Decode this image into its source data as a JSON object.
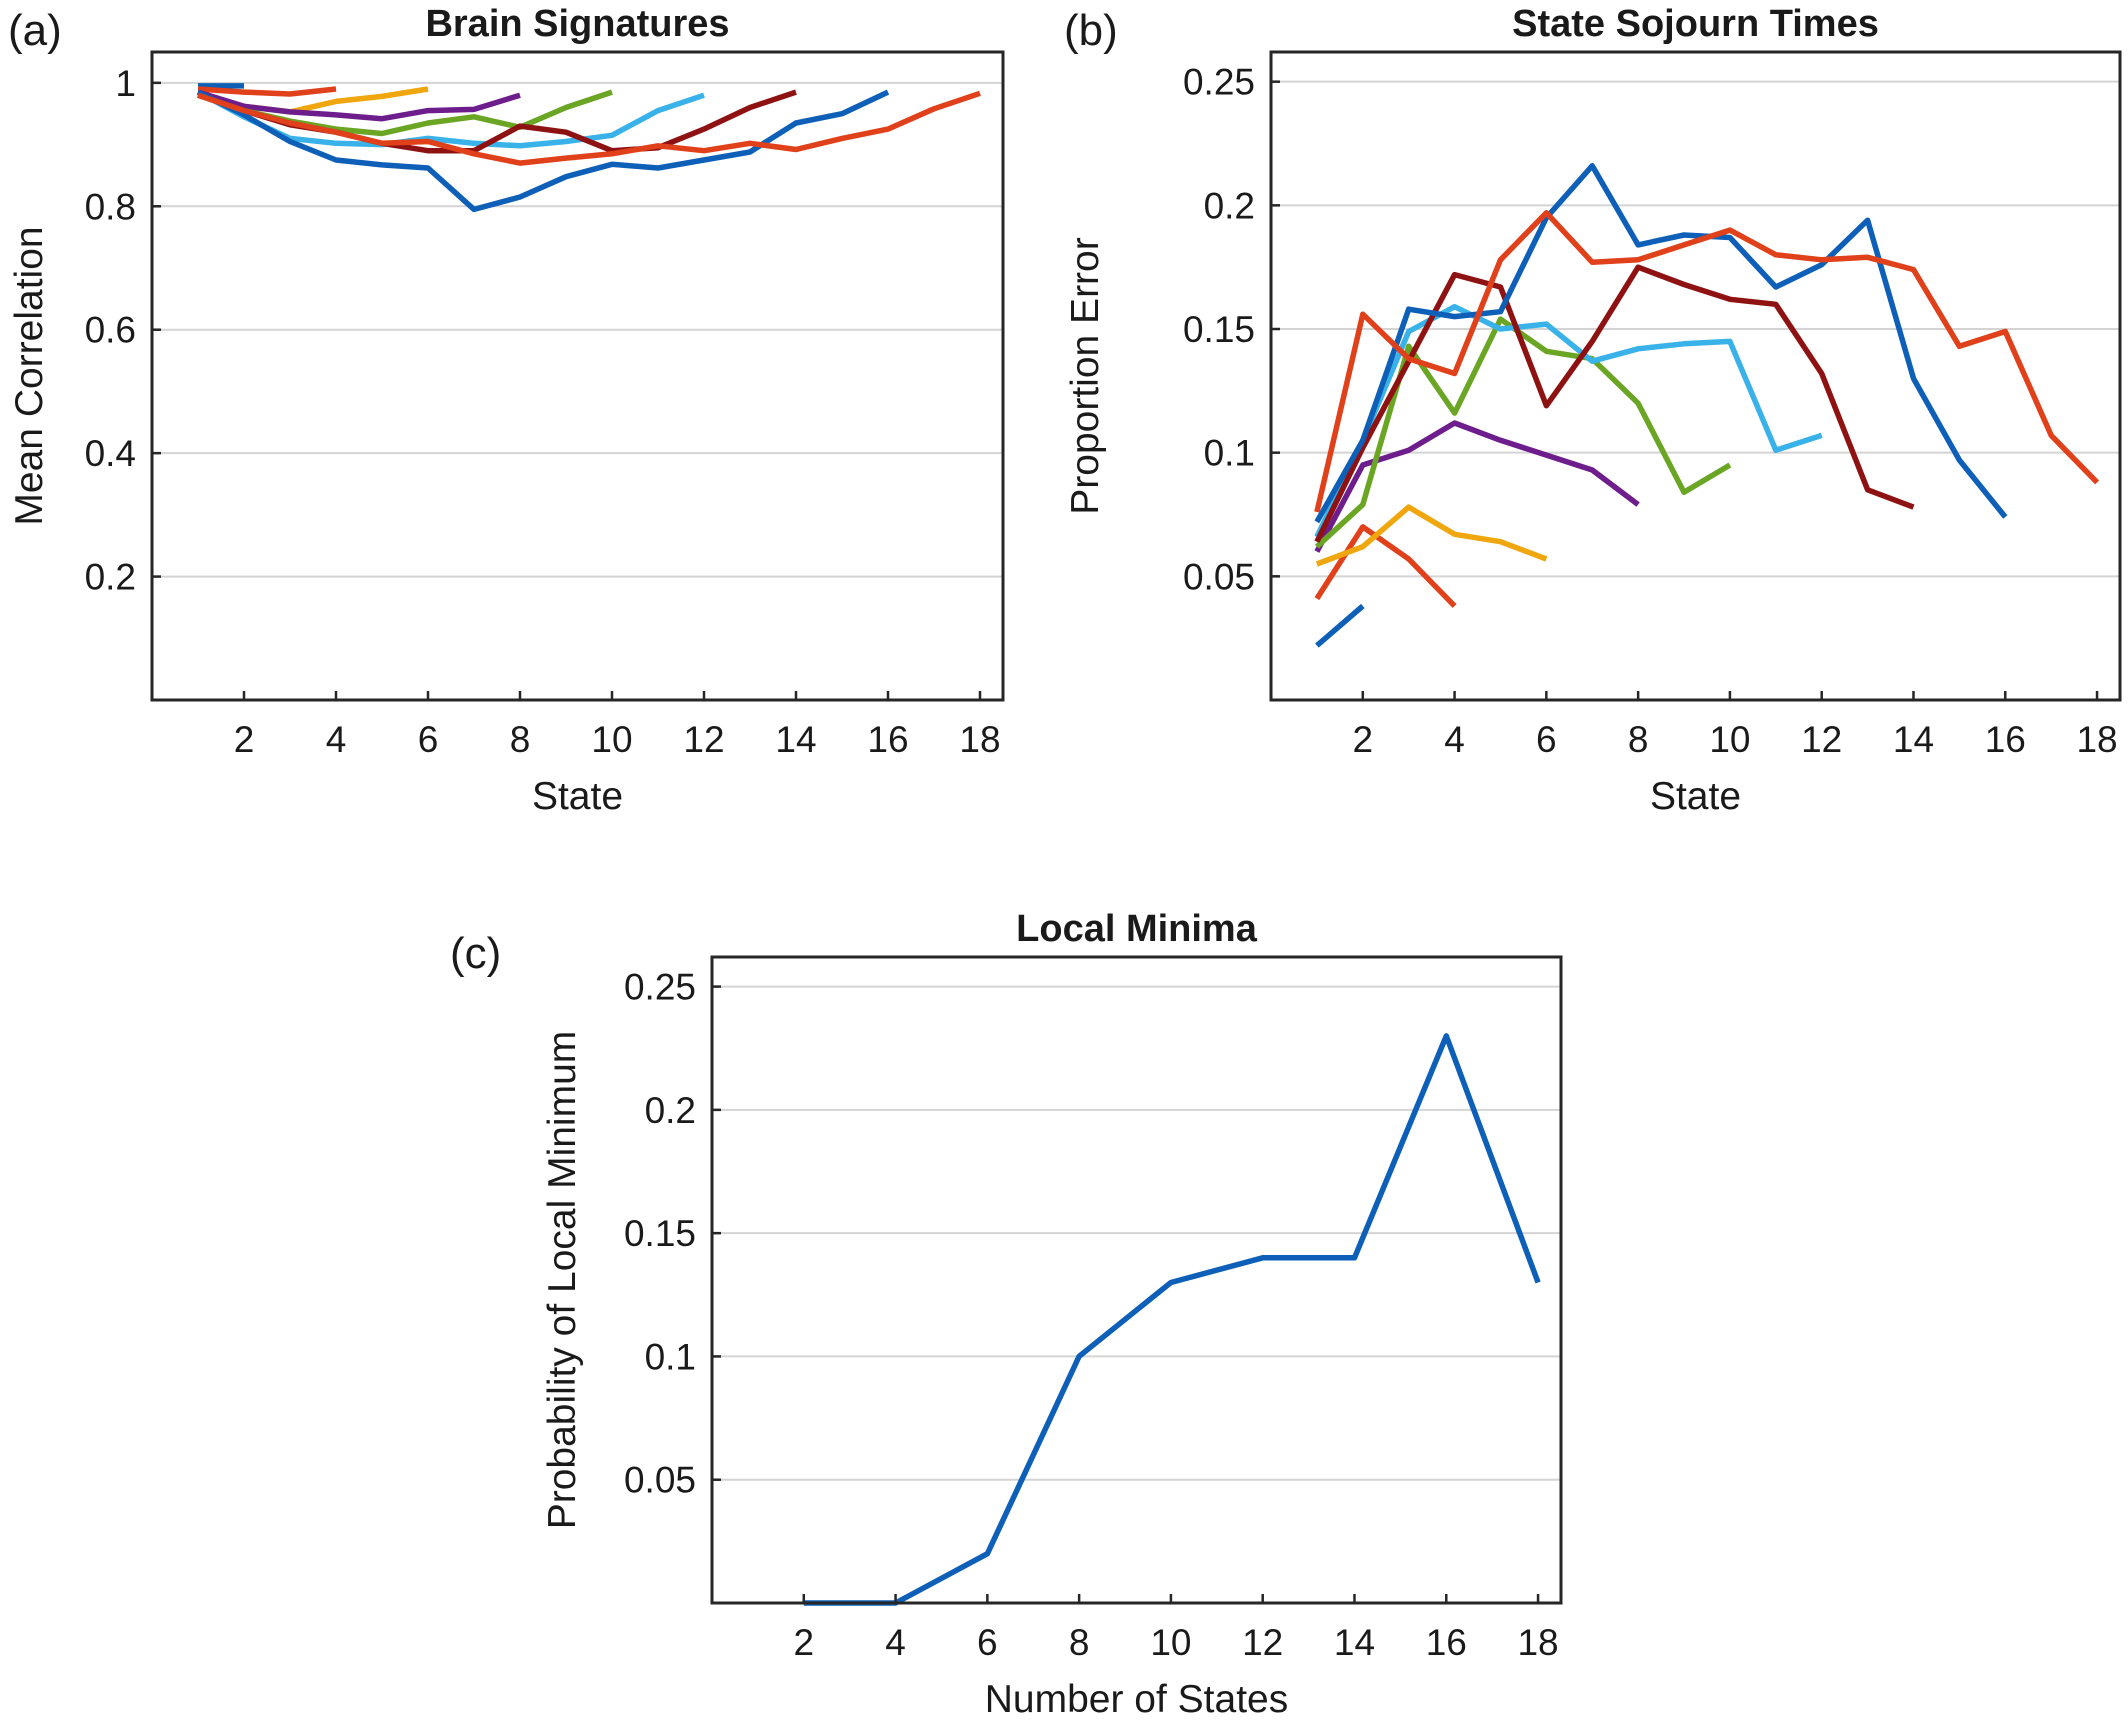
{
  "chart_data": [
    {
      "type": "line",
      "panel_label": "(a)",
      "title": "Brain Signatures",
      "xlabel": "State",
      "ylabel": "Mean Correlation",
      "xlim": [
        0,
        18.5
      ],
      "ylim": [
        0,
        1.05
      ],
      "xticks": [
        "2",
        "4",
        "6",
        "8",
        "10",
        "12",
        "14",
        "16",
        "18"
      ],
      "xtick_values": [
        2,
        4,
        6,
        8,
        10,
        12,
        14,
        16,
        18
      ],
      "yticks": [
        "0.2",
        "0.4",
        "0.6",
        "0.8",
        "1"
      ],
      "ytick_values": [
        0.2,
        0.4,
        0.6,
        0.8,
        1.0
      ],
      "grid": "horizontal",
      "series": [
        {
          "color": "#0d5fb8",
          "x": [
            1,
            2
          ],
          "y": [
            0.995,
            0.995
          ]
        },
        {
          "color": "#e0401a",
          "x": [
            1,
            2,
            3,
            4
          ],
          "y": [
            0.99,
            0.985,
            0.982,
            0.99
          ]
        },
        {
          "color": "#f0a70e",
          "x": [
            1,
            2,
            3,
            4,
            5,
            6
          ],
          "y": [
            0.98,
            0.962,
            0.953,
            0.97,
            0.978,
            0.99
          ]
        },
        {
          "color": "#6e1d8c",
          "x": [
            1,
            2,
            3,
            4,
            5,
            6,
            7,
            8
          ],
          "y": [
            0.985,
            0.962,
            0.953,
            0.948,
            0.942,
            0.955,
            0.957,
            0.98
          ]
        },
        {
          "color": "#6aa524",
          "x": [
            1,
            2,
            3,
            4,
            5,
            6,
            7,
            8,
            9,
            10
          ],
          "y": [
            0.98,
            0.955,
            0.938,
            0.925,
            0.918,
            0.935,
            0.945,
            0.928,
            0.96,
            0.985
          ]
        },
        {
          "color": "#38b2e8",
          "x": [
            1,
            2,
            3,
            4,
            5,
            6,
            7,
            8,
            9,
            10,
            11,
            12
          ],
          "y": [
            0.985,
            0.945,
            0.91,
            0.902,
            0.9,
            0.91,
            0.902,
            0.898,
            0.905,
            0.915,
            0.955,
            0.98
          ]
        },
        {
          "color": "#8f1212",
          "x": [
            1,
            2,
            3,
            4,
            5,
            6,
            7,
            8,
            9,
            10,
            11,
            12,
            13,
            14
          ],
          "y": [
            0.98,
            0.955,
            0.932,
            0.92,
            0.902,
            0.89,
            0.89,
            0.93,
            0.92,
            0.89,
            0.895,
            0.925,
            0.96,
            0.985
          ]
        },
        {
          "color": "#0d5fb8",
          "x": [
            1,
            2,
            3,
            4,
            5,
            6,
            7,
            8,
            9,
            10,
            11,
            12,
            13,
            14,
            15,
            16
          ],
          "y": [
            0.985,
            0.948,
            0.905,
            0.875,
            0.867,
            0.862,
            0.795,
            0.815,
            0.848,
            0.868,
            0.862,
            0.875,
            0.888,
            0.935,
            0.95,
            0.985
          ]
        },
        {
          "color": "#e0401a",
          "x": [
            1,
            2,
            3,
            4,
            5,
            6,
            7,
            8,
            9,
            10,
            11,
            12,
            13,
            14,
            15,
            16,
            17,
            18
          ],
          "y": [
            0.98,
            0.955,
            0.935,
            0.92,
            0.902,
            0.905,
            0.885,
            0.87,
            0.878,
            0.885,
            0.898,
            0.89,
            0.902,
            0.892,
            0.91,
            0.925,
            0.958,
            0.983
          ]
        }
      ]
    },
    {
      "type": "line",
      "panel_label": "(b)",
      "title": "State Sojourn Times",
      "xlabel": "State",
      "ylabel": "Proportion Error",
      "xlim": [
        0,
        18.5
      ],
      "ylim": [
        0,
        0.262
      ],
      "xticks": [
        "2",
        "4",
        "6",
        "8",
        "10",
        "12",
        "14",
        "16",
        "18"
      ],
      "xtick_values": [
        2,
        4,
        6,
        8,
        10,
        12,
        14,
        16,
        18
      ],
      "yticks": [
        "0.05",
        "0.1",
        "0.15",
        "0.2",
        "0.25"
      ],
      "ytick_values": [
        0.05,
        0.1,
        0.15,
        0.2,
        0.25
      ],
      "grid": "horizontal",
      "series": [
        {
          "color": "#0d5fb8",
          "x": [
            1,
            2
          ],
          "y": [
            0.022,
            0.038
          ]
        },
        {
          "color": "#e0401a",
          "x": [
            1,
            2,
            3,
            4
          ],
          "y": [
            0.041,
            0.07,
            0.057,
            0.038
          ]
        },
        {
          "color": "#f0a70e",
          "x": [
            1,
            2,
            3,
            4,
            5,
            6
          ],
          "y": [
            0.055,
            0.062,
            0.078,
            0.067,
            0.064,
            0.057
          ]
        },
        {
          "color": "#6e1d8c",
          "x": [
            1,
            2,
            3,
            4,
            5,
            6,
            7,
            8
          ],
          "y": [
            0.06,
            0.095,
            0.101,
            0.112,
            0.105,
            0.099,
            0.093,
            0.079
          ]
        },
        {
          "color": "#6aa524",
          "x": [
            1,
            2,
            3,
            4,
            5,
            6,
            7,
            8,
            9,
            10
          ],
          "y": [
            0.062,
            0.079,
            0.143,
            0.116,
            0.154,
            0.141,
            0.138,
            0.12,
            0.084,
            0.095
          ]
        },
        {
          "color": "#38b2e8",
          "x": [
            1,
            2,
            3,
            4,
            5,
            6,
            7,
            8,
            9,
            10,
            11,
            12
          ],
          "y": [
            0.066,
            0.105,
            0.149,
            0.159,
            0.15,
            0.152,
            0.137,
            0.142,
            0.144,
            0.145,
            0.101,
            0.107
          ]
        },
        {
          "color": "#8f1212",
          "x": [
            1,
            2,
            3,
            4,
            5,
            6,
            7,
            8,
            9,
            10,
            11,
            12,
            13,
            14
          ],
          "y": [
            0.064,
            0.102,
            0.137,
            0.172,
            0.167,
            0.119,
            0.145,
            0.175,
            0.168,
            0.162,
            0.16,
            0.132,
            0.085,
            0.078
          ]
        },
        {
          "color": "#0d5fb8",
          "x": [
            1,
            2,
            3,
            4,
            5,
            6,
            7,
            8,
            9,
            10,
            11,
            12,
            13,
            14,
            15,
            16
          ],
          "y": [
            0.072,
            0.105,
            0.158,
            0.155,
            0.157,
            0.195,
            0.216,
            0.184,
            0.188,
            0.187,
            0.167,
            0.176,
            0.194,
            0.13,
            0.097,
            0.074
          ]
        },
        {
          "color": "#e0401a",
          "x": [
            1,
            2,
            3,
            4,
            5,
            6,
            7,
            8,
            9,
            10,
            11,
            12,
            13,
            14,
            15,
            16,
            17,
            18
          ],
          "y": [
            0.076,
            0.156,
            0.138,
            0.132,
            0.178,
            0.197,
            0.177,
            0.178,
            0.184,
            0.19,
            0.18,
            0.178,
            0.179,
            0.174,
            0.143,
            0.149,
            0.107,
            0.088
          ]
        }
      ]
    },
    {
      "type": "line",
      "panel_label": "(c)",
      "title": "Local Minima",
      "xlabel": "Number of States",
      "ylabel": "Probability of Local Minimum",
      "xlim": [
        0,
        18.5
      ],
      "ylim": [
        0,
        0.262
      ],
      "xticks": [
        "2",
        "4",
        "6",
        "8",
        "10",
        "12",
        "14",
        "16",
        "18"
      ],
      "xtick_values": [
        2,
        4,
        6,
        8,
        10,
        12,
        14,
        16,
        18
      ],
      "yticks": [
        "0.05",
        "0.1",
        "0.15",
        "0.2",
        "0.25"
      ],
      "ytick_values": [
        0.05,
        0.1,
        0.15,
        0.2,
        0.25
      ],
      "grid": "horizontal",
      "series": [
        {
          "color": "#0d5fb8",
          "x": [
            2,
            4,
            6,
            8,
            10,
            12,
            14,
            16,
            18
          ],
          "y": [
            0.0,
            0.0,
            0.02,
            0.1,
            0.13,
            0.14,
            0.14,
            0.23,
            0.13
          ]
        }
      ]
    }
  ]
}
